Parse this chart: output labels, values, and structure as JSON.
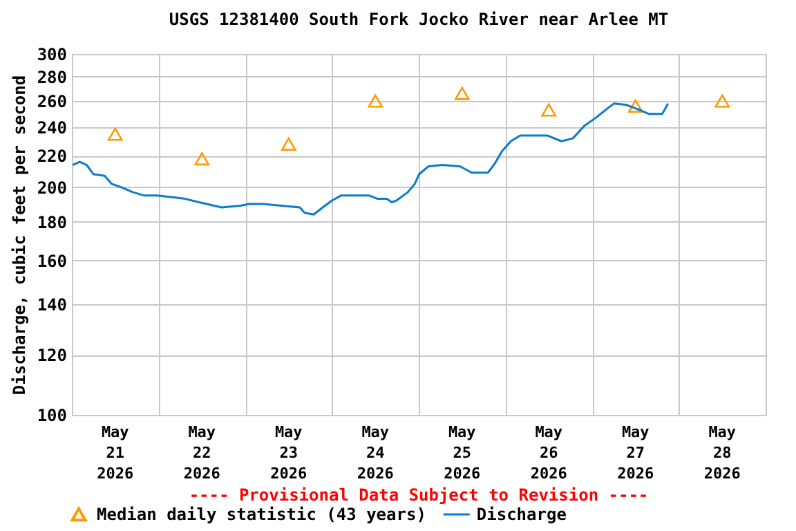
{
  "chart_data": {
    "type": "line",
    "title": "USGS 12381400 South Fork Jocko River near Arlee MT",
    "ylabel": "Discharge, cubic feet per second",
    "annotations": [
      "---- Provisional Data Subject to Revision ----"
    ],
    "log": "y",
    "grid": true,
    "legend": "bottom",
    "xlim": [
      "2026-05-21T00:00",
      "2026-05-29T00:00"
    ],
    "xticks": [
      {
        "value": "2026-05-21T00:00",
        "label": null
      },
      {
        "value": "2026-05-21T12:00",
        "label": "May 21 2026"
      },
      {
        "value": "2026-05-22T00:00",
        "label": null
      },
      {
        "value": "2026-05-22T12:00",
        "label": "May 22 2026"
      },
      {
        "value": "2026-05-23T00:00",
        "label": null
      },
      {
        "value": "2026-05-23T12:00",
        "label": "May 23 2026"
      },
      {
        "value": "2026-05-24T00:00",
        "label": null
      },
      {
        "value": "2026-05-24T12:00",
        "label": "May 24 2026"
      },
      {
        "value": "2026-05-25T00:00",
        "label": null
      },
      {
        "value": "2026-05-25T12:00",
        "label": "May 25 2026"
      },
      {
        "value": "2026-05-26T00:00",
        "label": null
      },
      {
        "value": "2026-05-26T12:00",
        "label": "May 26 2026"
      },
      {
        "value": "2026-05-27T00:00",
        "label": null
      },
      {
        "value": "2026-05-27T12:00",
        "label": "May 27 2026"
      },
      {
        "value": "2026-05-28T00:00",
        "label": null
      },
      {
        "value": "2026-05-28T12:00",
        "label": "May 28 2026"
      },
      {
        "value": "2026-05-29T00:00",
        "label": null
      }
    ],
    "ylim": [
      100,
      300
    ],
    "yticks": [
      100,
      120,
      140,
      160,
      180,
      200,
      220,
      240,
      260,
      280,
      300
    ],
    "series": [
      {
        "name": "Median daily statistic (43 years)",
        "type": "scatter",
        "marker": "triangle",
        "color": "#ff9900",
        "x": [
          "2026-05-21T12:00",
          "2026-05-22T12:00",
          "2026-05-23T12:00",
          "2026-05-24T12:00",
          "2026-05-25T12:00",
          "2026-05-26T12:00",
          "2026-05-27T12:00",
          "2026-05-28T12:00"
        ],
        "values": [
          235,
          218,
          228,
          260,
          266,
          253,
          256,
          260
        ]
      },
      {
        "name": "Discharge",
        "type": "line",
        "marker": "none",
        "line_style": "solid",
        "color": "#0a7ccc",
        "x": [
          "2026-05-21T00:15",
          "2026-05-21T02:10",
          "2026-05-21T04:05",
          "2026-05-21T06:00",
          "2026-05-21T09:05",
          "2026-05-21T11:00",
          "2026-05-21T13:35",
          "2026-05-21T16:50",
          "2026-05-21T19:55",
          "2026-05-21T23:40",
          "2026-05-22T07:25",
          "2026-05-22T11:10",
          "2026-05-22T17:30",
          "2026-05-22T22:35",
          "2026-05-23T01:05",
          "2026-05-23T05:00",
          "2026-05-23T10:00",
          "2026-05-23T15:05",
          "2026-05-23T16:25",
          "2026-05-23T18:55",
          "2026-05-23T21:25",
          "2026-05-24T00:00",
          "2026-05-24T02:35",
          "2026-05-24T10:10",
          "2026-05-24T12:40",
          "2026-05-24T15:10",
          "2026-05-24T16:30",
          "2026-05-24T17:50",
          "2026-05-24T21:00",
          "2026-05-24T22:55",
          "2026-05-25T00:05",
          "2026-05-25T02:40",
          "2026-05-25T06:30",
          "2026-05-25T11:30",
          "2026-05-25T14:40",
          "2026-05-25T19:10",
          "2026-05-25T21:05",
          "2026-05-25T23:00",
          "2026-05-26T01:30",
          "2026-05-26T04:05",
          "2026-05-26T11:40",
          "2026-05-26T15:30",
          "2026-05-26T18:40",
          "2026-05-26T21:50",
          "2026-05-27T01:00",
          "2026-05-27T04:10",
          "2026-05-27T06:05",
          "2026-05-27T09:20",
          "2026-05-27T13:05",
          "2026-05-27T15:35",
          "2026-05-27T19:25",
          "2026-05-27T21:00"
        ],
        "values": [
          214,
          216,
          214,
          208,
          207,
          202,
          200,
          197,
          195,
          195,
          193,
          191,
          188,
          189,
          190,
          190,
          189,
          188,
          185,
          184,
          188,
          192,
          195,
          195,
          193,
          193,
          191,
          192,
          197,
          202,
          208,
          213,
          214,
          213,
          209,
          209,
          215,
          223,
          230,
          234,
          234,
          230,
          232,
          241,
          247,
          254,
          258,
          257,
          253,
          250,
          250,
          258
        ]
      }
    ]
  }
}
